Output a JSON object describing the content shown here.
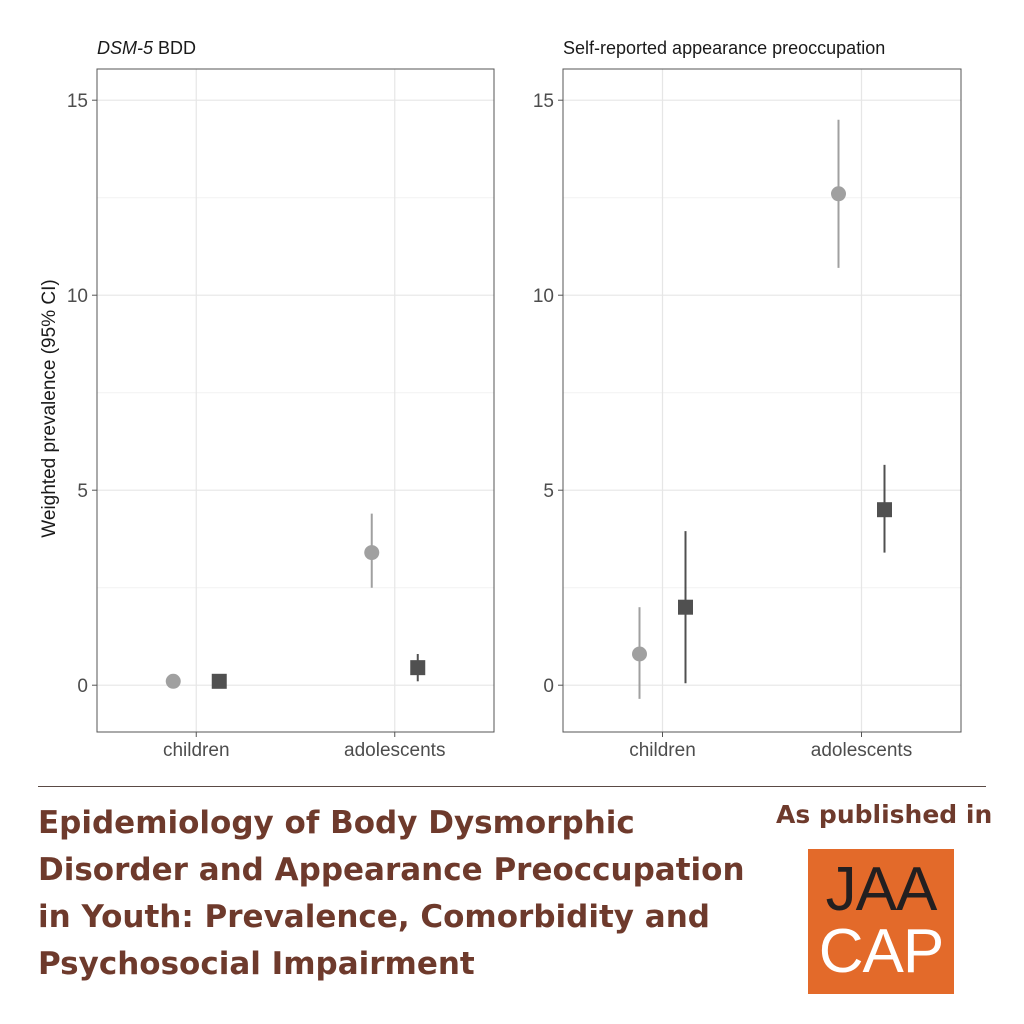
{
  "chart_data": {
    "type": "scatter",
    "ylabel": "Weighted prevalence (95% CI)",
    "ylim": [
      -1.2,
      15.8
    ],
    "yticks": [
      0,
      5,
      10,
      15
    ],
    "grid": true,
    "categories": [
      "children",
      "adolescents"
    ],
    "panels": [
      {
        "title_italic": "DSM-5",
        "title": " BDD",
        "series": [
          {
            "marker": "circle",
            "color": "#a0a0a0",
            "points": [
              {
                "category": "children",
                "y": 0.1,
                "lo": 0.1,
                "hi": 0.1
              },
              {
                "category": "adolescents",
                "y": 3.4,
                "lo": 2.5,
                "hi": 4.4
              }
            ]
          },
          {
            "marker": "square",
            "color": "#505050",
            "points": [
              {
                "category": "children",
                "y": 0.1,
                "lo": 0.1,
                "hi": 0.1
              },
              {
                "category": "adolescents",
                "y": 0.45,
                "lo": 0.1,
                "hi": 0.8
              }
            ]
          }
        ]
      },
      {
        "title_italic": "",
        "title": "Self-reported appearance preoccupation",
        "series": [
          {
            "marker": "circle",
            "color": "#a0a0a0",
            "points": [
              {
                "category": "children",
                "y": 0.8,
                "lo": -0.35,
                "hi": 2.0
              },
              {
                "category": "adolescents",
                "y": 12.6,
                "lo": 10.7,
                "hi": 14.5
              }
            ]
          },
          {
            "marker": "square",
            "color": "#505050",
            "points": [
              {
                "category": "children",
                "y": 2.0,
                "lo": 0.05,
                "hi": 3.95
              },
              {
                "category": "adolescents",
                "y": 4.5,
                "lo": 3.4,
                "hi": 5.65
              }
            ]
          }
        ]
      }
    ]
  },
  "footer": {
    "title_lines": [
      "Epidemiology of Body Dysmorphic",
      "Disorder and Appearance Preoccupation",
      "in Youth: Prevalence, Comorbidity and",
      "Psychosocial Impairment"
    ],
    "published_label": "As published in",
    "logo_top": "JAA",
    "logo_bottom": "CAP"
  }
}
